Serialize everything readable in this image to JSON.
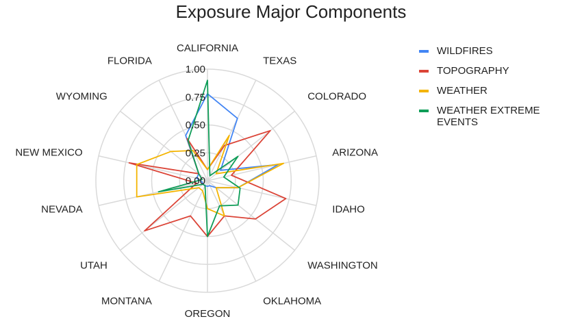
{
  "chart_data": {
    "type": "radar",
    "title": "Exposure Major Components",
    "categories": [
      "CALIFORNIA",
      "TEXAS",
      "COLORADO",
      "ARIZONA",
      "IDAHO",
      "WASHINGTON",
      "OKLAHOMA",
      "OREGON",
      "MONTANA",
      "UTAH",
      "NEVADA",
      "NEW MEXICO",
      "WYOMING",
      "FLORIDA"
    ],
    "rlim": [
      0,
      1
    ],
    "ticks": [
      "0.00",
      "0.25",
      "0.50",
      "0.75",
      "1.00"
    ],
    "grid": true,
    "legend_position": "right",
    "series": [
      {
        "name": "WILDFIRES",
        "color": "#4285f4",
        "values": [
          0.78,
          0.62,
          0.15,
          0.65,
          0.28,
          0.1,
          0.05,
          0.05,
          0.05,
          0.05,
          0.05,
          0.1,
          0.1,
          0.45
        ]
      },
      {
        "name": "TOPOGRAPHY",
        "color": "#db4437",
        "values": [
          0.1,
          0.35,
          0.72,
          0.22,
          0.72,
          0.55,
          0.35,
          0.5,
          0.35,
          0.72,
          0.1,
          0.72,
          0.1,
          0.42
        ]
      },
      {
        "name": "WEATHER",
        "color": "#f4b400",
        "values": [
          0.1,
          0.45,
          0.1,
          0.7,
          0.28,
          0.1,
          0.35,
          0.25,
          0.1,
          0.1,
          0.65,
          0.65,
          0.42,
          0.3
        ]
      },
      {
        "name": "WEATHER EXTREME EVENTS",
        "color": "#0f9d58",
        "values": [
          0.9,
          0.05,
          0.35,
          0.15,
          0.3,
          0.35,
          0.25,
          0.5,
          0.05,
          0.05,
          0.45,
          0.05,
          0.1,
          0.4
        ]
      }
    ]
  }
}
